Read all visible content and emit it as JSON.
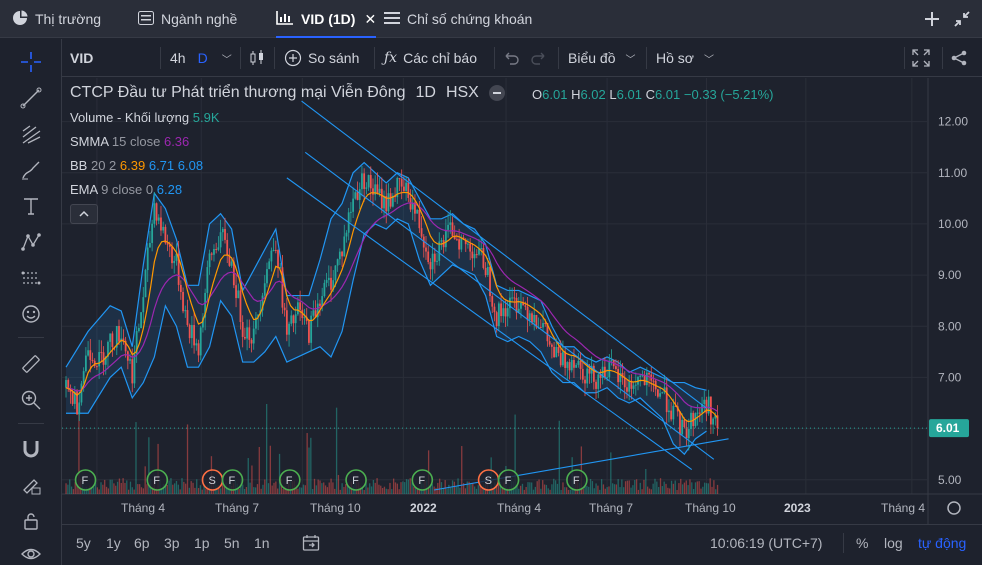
{
  "tabs": [
    {
      "label": "Thị trường",
      "icon": "pie-chart-icon",
      "active": false
    },
    {
      "label": "Ngành nghề",
      "icon": "list-icon",
      "active": false
    },
    {
      "label": "VID (1D)",
      "icon": "chart-icon",
      "active": true
    },
    {
      "label": "Chỉ số chứng khoán",
      "icon": "menu-icon",
      "active": false
    }
  ],
  "toolbar": {
    "symbol": "VID",
    "interval": "4h",
    "interval_active": "D",
    "compare_label": "So sánh",
    "indicators_label": "Các chỉ báo",
    "chart_type_label": "Biểu đồ",
    "profile_label": "Hồ sơ"
  },
  "header": {
    "company": "CTCP Đầu tư Phát triển thương mại Viễn Đông",
    "timeframe": "1D",
    "exchange": "HSX",
    "o_label": "O",
    "o": "6.01",
    "h_label": "H",
    "h": "6.02",
    "l_label": "L",
    "l": "6.01",
    "c_label": "C",
    "c": "6.01",
    "change": "−0.33 (−5.21%)"
  },
  "indicators": {
    "volume_label": "Volume - Khối lượng",
    "volume_value": "5.9K",
    "smma_label": "SMMA",
    "smma_params": "15 close",
    "smma_value": "6.36",
    "bb_label": "BB",
    "bb_params": "20 2",
    "bb_v1": "6.39",
    "bb_v2": "6.71",
    "bb_v3": "6.08",
    "ema_label": "EMA",
    "ema_params": "9 close 0",
    "ema_value": "6.28"
  },
  "colors": {
    "up": "#26a69a",
    "down": "#ef5350",
    "band": "#2196f3",
    "smma": "#9c27b0",
    "ema": "#ff9800",
    "channel": "#2196f3",
    "price_tag": "#26a69a"
  },
  "chart_data": {
    "type": "candlestick",
    "ylim": [
      4.8,
      12.5
    ],
    "y_ticks": [
      "12.00",
      "11.00",
      "10.00",
      "9.00",
      "8.00",
      "7.00",
      "6.00",
      "5.00"
    ],
    "x_ticks": [
      "Tháng 4",
      "Tháng 7",
      "Tháng 10",
      "2022",
      "Tháng 4",
      "Tháng 7",
      "Tháng 10",
      "2023",
      "Tháng 4"
    ],
    "last_price_label": "6.01",
    "price_path": [
      [
        0,
        6.8
      ],
      [
        6,
        6.5
      ],
      [
        12,
        7.6
      ],
      [
        18,
        7.3
      ],
      [
        24,
        7.7
      ],
      [
        30,
        7.9
      ],
      [
        36,
        7.1
      ],
      [
        42,
        8.6
      ],
      [
        48,
        10.4
      ],
      [
        54,
        9.7
      ],
      [
        60,
        9.2
      ],
      [
        66,
        8.0
      ],
      [
        72,
        7.6
      ],
      [
        78,
        9.3
      ],
      [
        84,
        9.8
      ],
      [
        90,
        9.2
      ],
      [
        96,
        8.0
      ],
      [
        102,
        7.8
      ],
      [
        108,
        9.0
      ],
      [
        114,
        9.7
      ],
      [
        120,
        7.8
      ],
      [
        126,
        8.3
      ],
      [
        132,
        7.9
      ],
      [
        138,
        8.6
      ],
      [
        144,
        8.9
      ],
      [
        150,
        9.5
      ],
      [
        156,
        10.5
      ],
      [
        162,
        10.9
      ],
      [
        168,
        10.6
      ],
      [
        174,
        10.4
      ],
      [
        180,
        10.7
      ],
      [
        186,
        10.6
      ],
      [
        192,
        10.0
      ],
      [
        198,
        9.3
      ],
      [
        204,
        9.6
      ],
      [
        210,
        9.9
      ],
      [
        216,
        9.6
      ],
      [
        222,
        9.5
      ],
      [
        228,
        9.2
      ],
      [
        234,
        8.2
      ],
      [
        240,
        8.4
      ],
      [
        246,
        8.5
      ],
      [
        252,
        8.3
      ],
      [
        258,
        8.1
      ],
      [
        264,
        7.5
      ],
      [
        270,
        7.3
      ],
      [
        276,
        7.4
      ],
      [
        282,
        7.1
      ],
      [
        288,
        7.0
      ],
      [
        294,
        7.2
      ],
      [
        300,
        7.0
      ],
      [
        306,
        6.8
      ],
      [
        312,
        7.0
      ],
      [
        318,
        6.8
      ],
      [
        324,
        6.7
      ],
      [
        330,
        6.3
      ],
      [
        336,
        5.9
      ],
      [
        342,
        6.3
      ],
      [
        348,
        6.5
      ],
      [
        354,
        6.01
      ]
    ],
    "upper_band": [
      [
        0,
        7.2
      ],
      [
        12,
        7.9
      ],
      [
        24,
        8.4
      ],
      [
        30,
        8.3
      ],
      [
        36,
        7.6
      ],
      [
        42,
        9.2
      ],
      [
        48,
        10.6
      ],
      [
        54,
        10.3
      ],
      [
        60,
        9.7
      ],
      [
        66,
        8.8
      ],
      [
        72,
        8.8
      ],
      [
        78,
        10.0
      ],
      [
        84,
        10.2
      ],
      [
        90,
        9.9
      ],
      [
        96,
        8.7
      ],
      [
        108,
        9.5
      ],
      [
        114,
        9.9
      ],
      [
        120,
        8.6
      ],
      [
        132,
        8.6
      ],
      [
        138,
        9.3
      ],
      [
        144,
        10.1
      ],
      [
        150,
        10.4
      ],
      [
        156,
        11.0
      ],
      [
        162,
        11.2
      ],
      [
        168,
        11.0
      ],
      [
        174,
        10.8
      ],
      [
        180,
        11.0
      ],
      [
        186,
        10.9
      ],
      [
        192,
        10.5
      ],
      [
        198,
        10.1
      ],
      [
        204,
        10.1
      ],
      [
        210,
        10.2
      ],
      [
        216,
        10.0
      ],
      [
        222,
        9.9
      ],
      [
        228,
        9.6
      ],
      [
        234,
        8.8
      ],
      [
        240,
        8.7
      ],
      [
        246,
        8.7
      ],
      [
        252,
        8.6
      ],
      [
        258,
        8.5
      ],
      [
        264,
        8.0
      ],
      [
        270,
        7.6
      ],
      [
        276,
        7.6
      ],
      [
        282,
        7.4
      ],
      [
        288,
        7.3
      ],
      [
        294,
        7.4
      ],
      [
        300,
        7.3
      ],
      [
        306,
        7.1
      ],
      [
        312,
        7.2
      ],
      [
        318,
        7.1
      ],
      [
        324,
        7.0
      ],
      [
        330,
        6.9
      ],
      [
        336,
        6.9
      ],
      [
        342,
        6.8
      ],
      [
        348,
        6.75
      ]
    ],
    "lower_band": [
      [
        0,
        6.3
      ],
      [
        12,
        6.3
      ],
      [
        24,
        7.0
      ],
      [
        30,
        7.2
      ],
      [
        36,
        6.6
      ],
      [
        42,
        6.9
      ],
      [
        48,
        7.4
      ],
      [
        54,
        8.4
      ],
      [
        60,
        8.0
      ],
      [
        66,
        7.2
      ],
      [
        72,
        7.2
      ],
      [
        78,
        7.6
      ],
      [
        84,
        8.5
      ],
      [
        90,
        8.2
      ],
      [
        96,
        7.3
      ],
      [
        102,
        7.3
      ],
      [
        108,
        7.5
      ],
      [
        114,
        7.8
      ],
      [
        120,
        7.3
      ],
      [
        132,
        7.5
      ],
      [
        138,
        7.6
      ],
      [
        144,
        7.4
      ],
      [
        150,
        7.9
      ],
      [
        156,
        8.9
      ],
      [
        162,
        9.8
      ],
      [
        168,
        10.0
      ],
      [
        174,
        9.9
      ],
      [
        180,
        10.1
      ],
      [
        186,
        10.0
      ],
      [
        192,
        9.3
      ],
      [
        198,
        8.8
      ],
      [
        204,
        9.0
      ],
      [
        210,
        9.2
      ],
      [
        216,
        9.1
      ],
      [
        222,
        9.0
      ],
      [
        228,
        8.6
      ],
      [
        234,
        7.8
      ],
      [
        240,
        7.7
      ],
      [
        246,
        7.8
      ],
      [
        252,
        7.7
      ],
      [
        258,
        7.5
      ],
      [
        264,
        7.1
      ],
      [
        270,
        6.9
      ],
      [
        276,
        6.9
      ],
      [
        282,
        6.7
      ],
      [
        288,
        6.7
      ],
      [
        294,
        6.8
      ],
      [
        300,
        6.6
      ],
      [
        306,
        6.5
      ],
      [
        312,
        6.6
      ],
      [
        318,
        6.4
      ],
      [
        324,
        6.2
      ],
      [
        330,
        5.7
      ],
      [
        336,
        5.5
      ],
      [
        342,
        5.8
      ],
      [
        348,
        5.95
      ]
    ],
    "channel_lines": [
      {
        "from": [
          128,
          12.4
        ],
        "to": [
          348,
          6.4
        ]
      },
      {
        "from": [
          130,
          11.4
        ],
        "to": [
          352,
          5.4
        ]
      },
      {
        "from": [
          120,
          10.9
        ],
        "to": [
          340,
          5.2
        ]
      },
      {
        "from": [
          200,
          4.8
        ],
        "to": [
          360,
          5.8
        ]
      }
    ],
    "event_markers": [
      {
        "x": 3,
        "labels": [
          "F"
        ]
      },
      {
        "x": 42,
        "labels": [
          "F"
        ]
      },
      {
        "x": 72,
        "labels": [
          "S",
          "F"
        ]
      },
      {
        "x": 114,
        "labels": [
          "F"
        ]
      },
      {
        "x": 150,
        "labels": [
          "F"
        ]
      },
      {
        "x": 186,
        "labels": [
          "F"
        ]
      },
      {
        "x": 222,
        "labels": [
          "S",
          "F"
        ]
      },
      {
        "x": 270,
        "labels": [
          "F"
        ]
      }
    ]
  },
  "axis": {
    "tick_settings_icon": "gear-icon"
  },
  "bottom": {
    "ranges": [
      "5y",
      "1y",
      "6p",
      "3p",
      "1p",
      "5n",
      "1n"
    ],
    "time": "10:06:19 (UTC+7)",
    "percent": "%",
    "log": "log",
    "auto": "tự động"
  }
}
